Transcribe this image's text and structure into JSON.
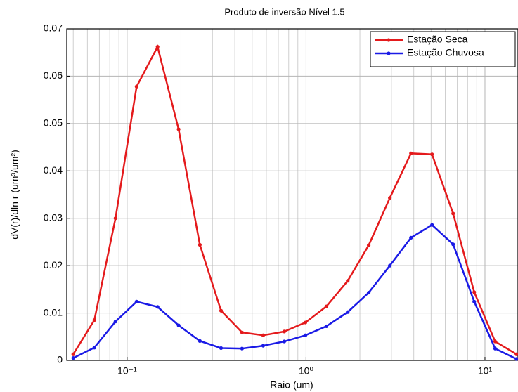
{
  "chart_data": {
    "type": "line",
    "title": "Produto de inversão Nível 1.5",
    "xlabel": "Raio (um)",
    "ylabel": "dV(r)/dln r (um³/um²)",
    "x": [
      0.05,
      0.0656,
      0.0861,
      0.113,
      0.148,
      0.194,
      0.255,
      0.335,
      0.439,
      0.576,
      0.756,
      0.992,
      1.3,
      1.71,
      2.24,
      2.94,
      3.86,
      5.06,
      6.64,
      8.71,
      11.4,
      15
    ],
    "series": [
      {
        "name": "Estação Seca",
        "color": "#e41a1c",
        "values": [
          0.0013,
          0.0085,
          0.03,
          0.0578,
          0.0662,
          0.0488,
          0.0244,
          0.0105,
          0.0059,
          0.0053,
          0.0061,
          0.008,
          0.0114,
          0.0168,
          0.0243,
          0.0343,
          0.0437,
          0.0435,
          0.031,
          0.0144,
          0.004,
          0.0013
        ]
      },
      {
        "name": "Estação Chuvosa",
        "color": "#1a1ae6",
        "values": [
          0.0005,
          0.0027,
          0.0082,
          0.0124,
          0.0113,
          0.0074,
          0.0041,
          0.0026,
          0.0025,
          0.0031,
          0.004,
          0.0053,
          0.0072,
          0.0102,
          0.0143,
          0.02,
          0.0259,
          0.0286,
          0.0245,
          0.0124,
          0.0025,
          0.0003
        ]
      }
    ],
    "xscale": "log",
    "xlim": [
      0.046,
      15.3
    ],
    "xticks": [
      {
        "value": 0.1,
        "label": "10⁻¹"
      },
      {
        "value": 1,
        "label": "10⁰"
      },
      {
        "value": 10,
        "label": "10¹"
      }
    ],
    "ylim": [
      0,
      0.07
    ],
    "yticks": [
      0,
      0.01,
      0.02,
      0.03,
      0.04,
      0.05,
      0.06,
      0.07
    ],
    "grid": true,
    "legend": "upper right"
  }
}
